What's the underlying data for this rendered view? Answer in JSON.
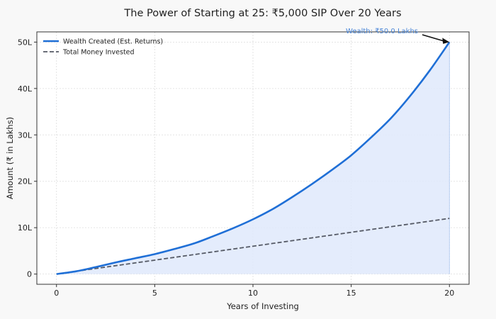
{
  "chart_data": {
    "type": "line",
    "title": "The Power of Starting at 25: ₹5,000 SIP Over 20 Years",
    "xlabel": "Years of Investing",
    "ylabel": "Amount (₹ in Lakhs)",
    "xlim": [
      -1,
      21
    ],
    "ylim": [
      -2.2,
      52.2
    ],
    "x_ticks": [
      0,
      5,
      10,
      15,
      20
    ],
    "x_tick_labels": [
      "0",
      "5",
      "10",
      "15",
      "20"
    ],
    "y_ticks": [
      0,
      10,
      20,
      30,
      40,
      50
    ],
    "y_tick_labels": [
      "0",
      "10L",
      "20L",
      "30L",
      "40L",
      "50L"
    ],
    "grid": true,
    "legend_position": "top-left",
    "x": [
      0,
      1,
      2,
      3,
      4,
      5,
      6,
      7,
      8,
      9,
      10,
      11,
      12,
      13,
      14,
      15,
      16,
      17,
      18,
      19,
      20
    ],
    "series": [
      {
        "name": "Wealth Created (Est. Returns)",
        "color": "#1f6fd6",
        "style": "solid",
        "fill": "#dfe9fb",
        "values": [
          0,
          0.6,
          1.5,
          2.5,
          3.4,
          4.3,
          5.4,
          6.6,
          8.2,
          9.9,
          11.8,
          14.0,
          16.6,
          19.4,
          22.4,
          25.6,
          29.4,
          33.5,
          38.4,
          43.9,
          50.0
        ]
      },
      {
        "name": "Total Money Invested",
        "color": "#555a66",
        "style": "dashed",
        "values": [
          0,
          0.6,
          1.2,
          1.8,
          2.4,
          3.0,
          3.6,
          4.2,
          4.8,
          5.4,
          6.0,
          6.6,
          7.2,
          7.8,
          8.4,
          9.0,
          9.6,
          10.2,
          10.8,
          11.4,
          12.0
        ]
      }
    ],
    "annotation": {
      "text": "Wealth: ₹50.0 Lakhs",
      "x": 20,
      "y": 50.0,
      "color": "#4a86d8"
    }
  }
}
